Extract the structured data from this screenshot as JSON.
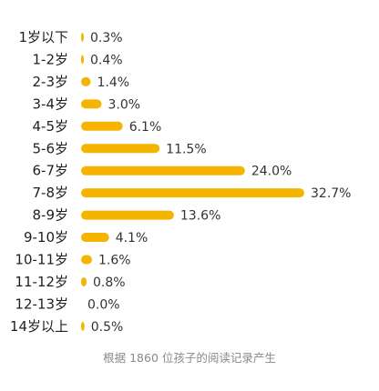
{
  "chart_data": {
    "type": "bar",
    "orientation": "horizontal",
    "categories": [
      "1岁以下",
      "1-2岁",
      "2-3岁",
      "3-4岁",
      "4-5岁",
      "5-6岁",
      "6-7岁",
      "7-8岁",
      "8-9岁",
      "9-10岁",
      "10-11岁",
      "11-12岁",
      "12-13岁",
      "14岁以上"
    ],
    "values": [
      0.3,
      0.4,
      1.4,
      3.0,
      6.1,
      11.5,
      24.0,
      32.7,
      13.6,
      4.1,
      1.6,
      0.8,
      0.0,
      0.5
    ],
    "value_labels": [
      "0.3%",
      "0.4%",
      "1.4%",
      "3.0%",
      "6.1%",
      "11.5%",
      "24.0%",
      "32.7%",
      "13.6%",
      "4.1%",
      "1.6%",
      "0.8%",
      "0.0%",
      "0.5%"
    ],
    "unit": "%",
    "xlim": [
      0,
      32.7
    ],
    "grid": false,
    "legend": "none",
    "bar_color": "#F5B400",
    "caption": "根据 1860 位孩子的阅读记录产生"
  }
}
